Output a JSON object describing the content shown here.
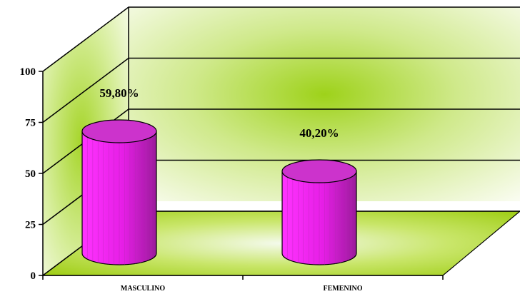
{
  "chart_data": {
    "type": "bar",
    "style": "3d-cylinder",
    "categories": [
      "MASCULINO",
      "FEMENINO"
    ],
    "values": [
      59.8,
      40.2
    ],
    "data_labels": [
      "59,80%",
      "40,20%"
    ],
    "ylim": [
      0,
      100
    ],
    "yticks": [
      "0",
      "25",
      "50",
      "75",
      "100"
    ],
    "grid": true,
    "legend": "none",
    "colors": {
      "bar_top": "#cc33cc",
      "bar_side_light": "#ff33ff",
      "bar_side_dark": "#a020a0",
      "floor": "#a8d81c",
      "wall_glow": "#9ed21a"
    }
  }
}
